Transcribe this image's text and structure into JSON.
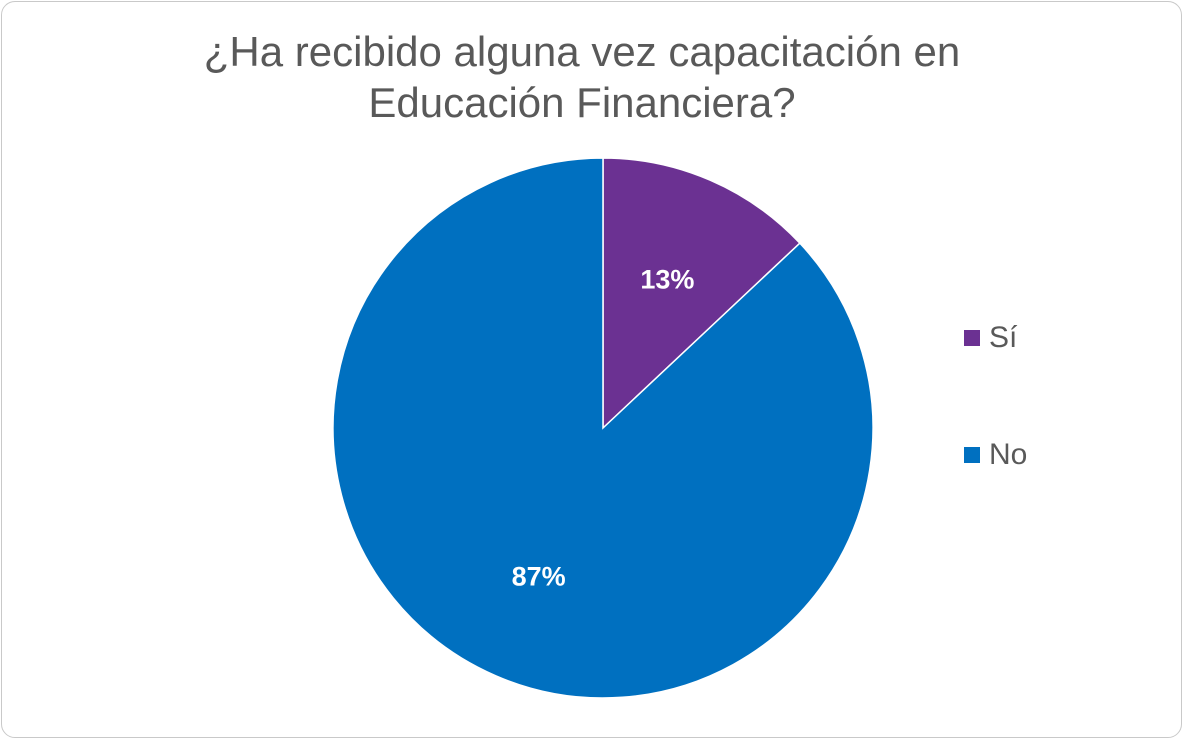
{
  "chart_data": {
    "type": "pie",
    "title_lines": [
      "¿Ha recibido alguna vez capacitación en",
      "Educación Financiera?"
    ],
    "categories": [
      "Sí",
      "No"
    ],
    "values": [
      13,
      87
    ],
    "data_labels": [
      "13%",
      "87%"
    ],
    "colors": [
      "#6B3192",
      "#0070C0"
    ],
    "legend_position": "right",
    "start_angle": "12 o'clock, clockwise"
  }
}
